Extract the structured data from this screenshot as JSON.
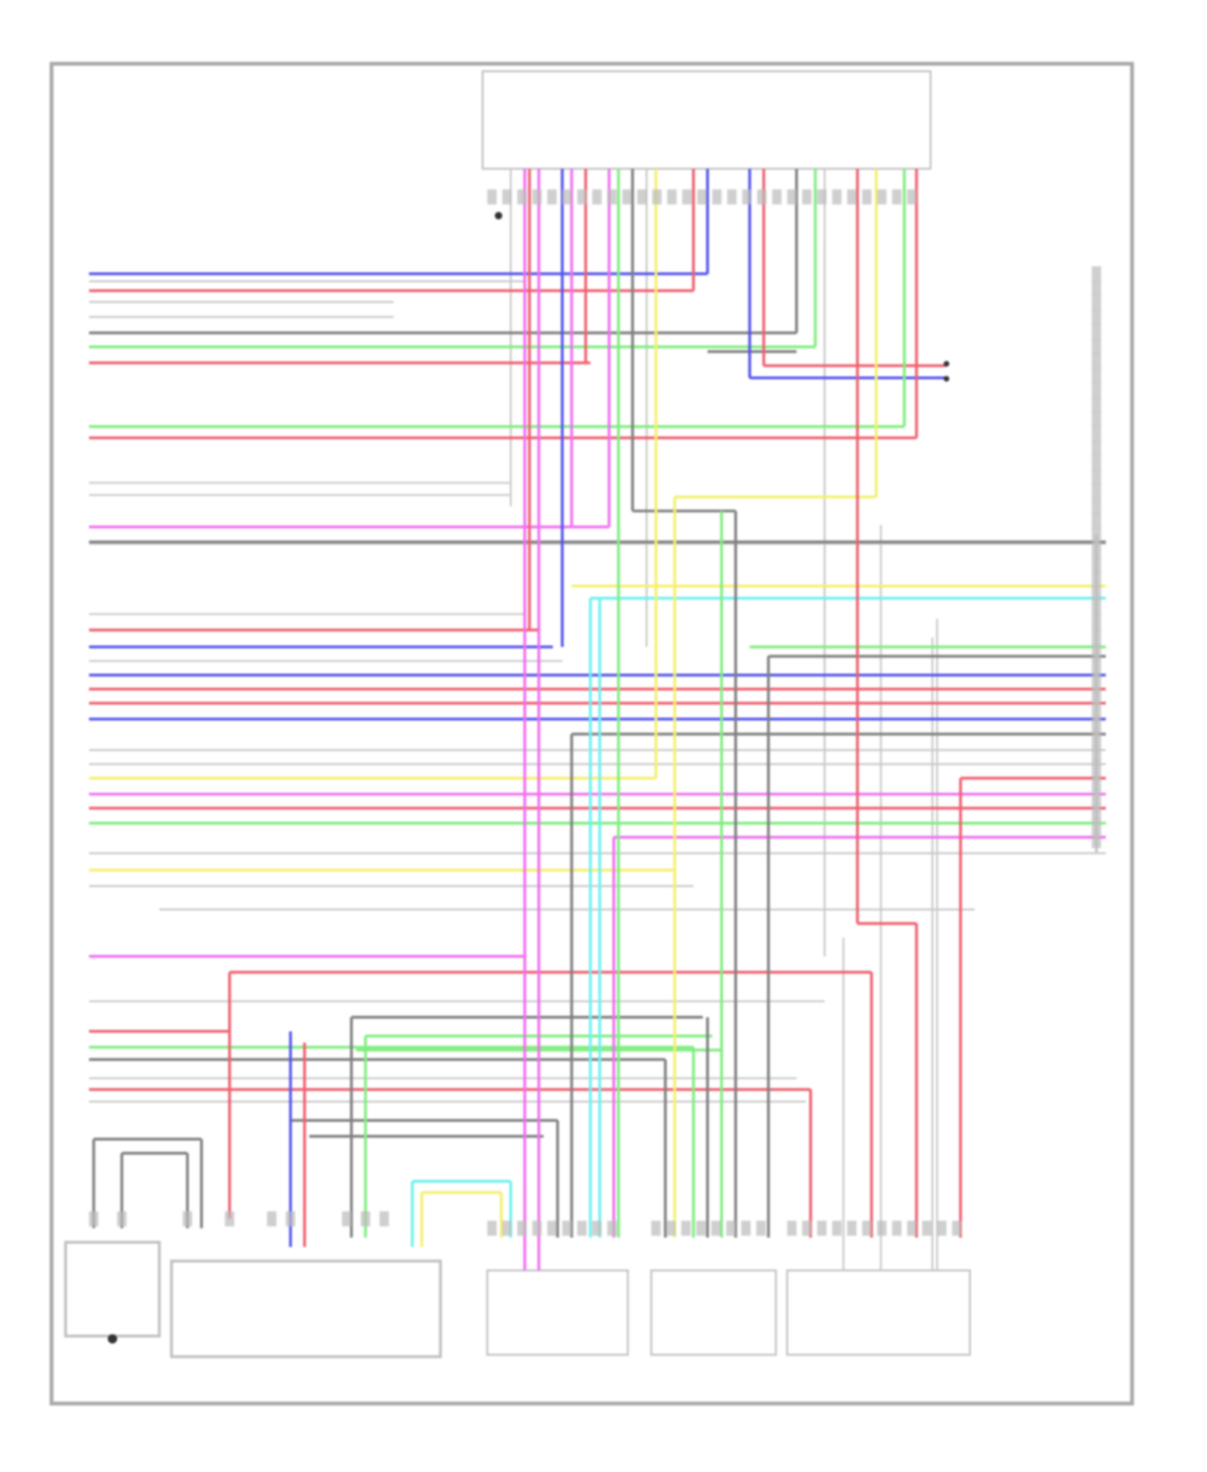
{
  "diagram": {
    "type": "wiring-diagram",
    "text_legible": false,
    "wire_colors": {
      "blue": "#5555ee",
      "red": "#f06070",
      "pink": "#f070f0",
      "green": "#80ee80",
      "yellow": "#f4f070",
      "cyan": "#70f0f0",
      "gray": "#808080",
      "light": "#c8c8c8"
    },
    "frame_color": "#a0a0a0"
  }
}
